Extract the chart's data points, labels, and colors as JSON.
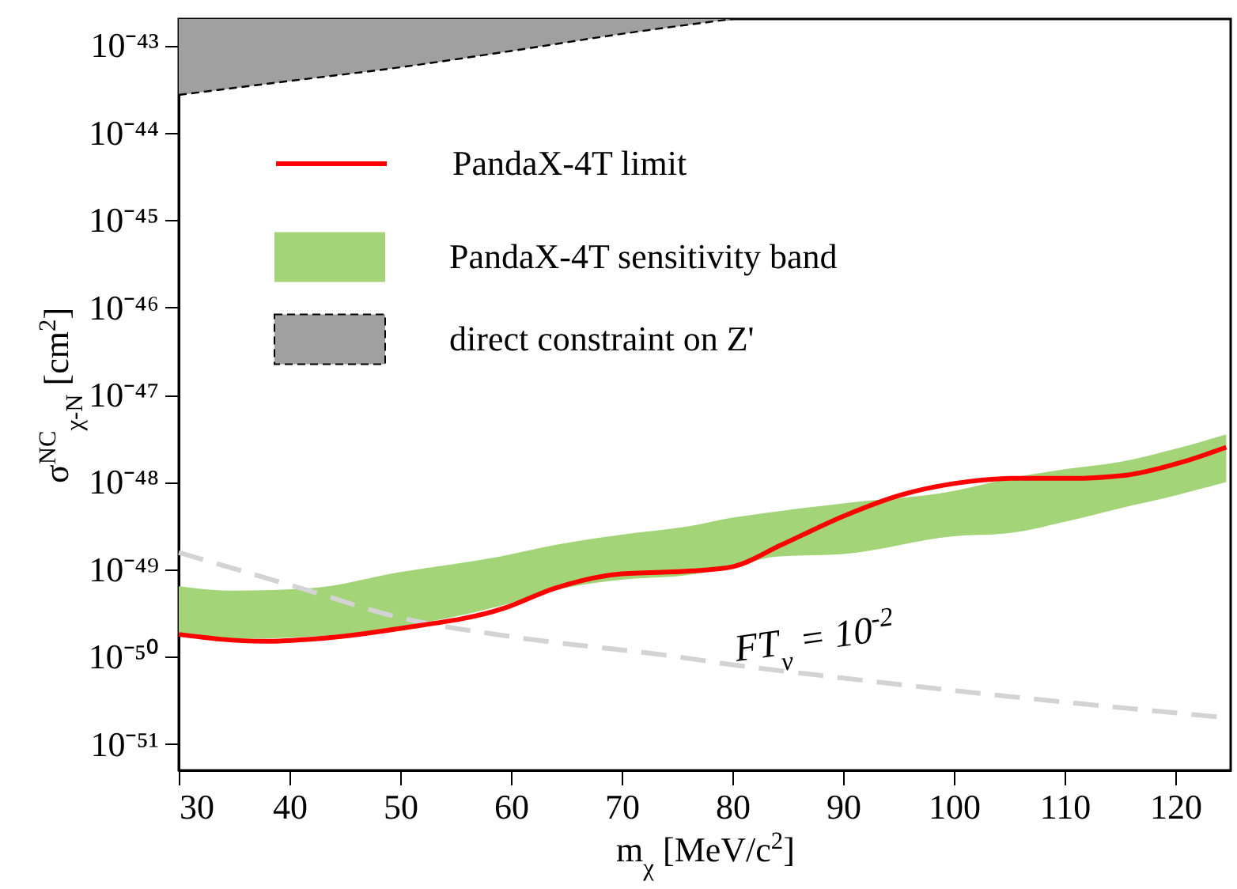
{
  "chart_data": {
    "type": "line",
    "xlabel": "m$_{χ}$ [MeV/c$^{2}$]",
    "ylabel": "σ$^{NC}$$_{χ-N}$ [cm$^{2}$]",
    "log": "y",
    "legend": "top left",
    "xlim": [
      30,
      125
    ],
    "xticks": [
      30,
      40,
      50,
      60,
      70,
      80,
      90,
      100,
      110,
      120
    ],
    "ylim": [
      5e-52,
      2e-43
    ],
    "yticks": [
      {
        "value": 1e-51,
        "label": "10⁻⁵¹"
      },
      {
        "value": 1e-50,
        "label": "10⁻⁵⁰"
      },
      {
        "value": 1e-49,
        "label": "10⁻⁴⁹"
      },
      {
        "value": 1e-48,
        "label": "10⁻⁴⁸"
      },
      {
        "value": 1e-47,
        "label": "10⁻⁴⁷"
      },
      {
        "value": 1e-46,
        "label": "10⁻⁴⁶"
      },
      {
        "value": 1e-45,
        "label": "10⁻⁴⁵"
      },
      {
        "value": 1e-44,
        "label": "10⁻⁴⁴"
      },
      {
        "value": 1e-43,
        "label": "10⁻⁴³"
      }
    ],
    "annotations": [
      "FT$_{ν}$ = 10$^{-2}$"
    ],
    "series": [
      {
        "name": "PandaX-4T sensitivity band",
        "type": "area",
        "color": "#a3d477",
        "x": [
          30,
          35,
          42,
          50,
          59,
          64,
          70,
          76,
          80,
          84,
          90,
          100,
          105,
          110,
          115,
          120,
          124.6
        ],
        "values": [
          null,
          null,
          null,
          null,
          null,
          null,
          null,
          null,
          null,
          null,
          null,
          null,
          null,
          null,
          null,
          null,
          null
        ],
        "lower": [
          1.8e-50,
          1.6e-50,
          1.7e-50,
          2.2e-50,
          3.8e-50,
          5.8e-50,
          7.6e-50,
          8.6e-50,
          1.07e-49,
          1.4e-49,
          1.5e-49,
          2.4e-49,
          2.6e-49,
          3.5e-49,
          5e-49,
          7e-49,
          1e-48
        ],
        "upper": [
          6.4e-50,
          5.7e-50,
          6.1e-50,
          9.3e-50,
          1.4e-49,
          1.9e-49,
          2.5e-49,
          3.1e-49,
          3.9e-49,
          4.6e-49,
          5.7e-49,
          7.9e-49,
          1.1e-48,
          1.4e-48,
          1.7e-48,
          2.4e-48,
          3.5e-48
        ]
      },
      {
        "name": "direct constraint on Z'",
        "type": "area",
        "color": "#a0a0a0",
        "line_style": "dashed",
        "x": [
          30,
          40,
          50,
          60,
          70,
          80
        ],
        "values": [
          null,
          null,
          null,
          null,
          null,
          null
        ],
        "lower": [
          2.7e-44,
          3.9e-44,
          5.6e-44,
          8.6e-44,
          1.35e-43,
          2e-43
        ],
        "upper": [
          2e-43,
          2e-43,
          2e-43,
          2e-43,
          2e-43,
          2e-43
        ]
      },
      {
        "color": "#d3d3d3",
        "line_style": "dashed",
        "x": [
          30,
          41,
          50,
          60,
          75,
          80,
          90,
          100,
          124.6
        ],
        "values": [
          1.56e-49,
          6.1e-50,
          2.8e-50,
          1.7e-50,
          1e-50,
          8.1e-51,
          5.7e-51,
          4.1e-51,
          2e-51
        ]
      },
      {
        "name": "PandaX-4T limit",
        "color": "#ff0000",
        "x": [
          30,
          37.6,
          42.3,
          49.9,
          59.4,
          64,
          69.7,
          76.4,
          80,
          84.4,
          90.1,
          95.2,
          100,
          105.2,
          110.4,
          115.6,
          120.4,
          124.6
        ],
        "values": [
          1.8e-50,
          1.5e-50,
          1.6e-50,
          2.1e-50,
          3.6e-50,
          6.1e-50,
          8.8e-50,
          9.6e-50,
          1.07e-49,
          1.9e-49,
          4.1e-49,
          7.1e-49,
          9.6e-49,
          1.1e-48,
          1.1e-48,
          1.2e-48,
          1.66e-48,
          2.5e-48
        ]
      }
    ]
  }
}
